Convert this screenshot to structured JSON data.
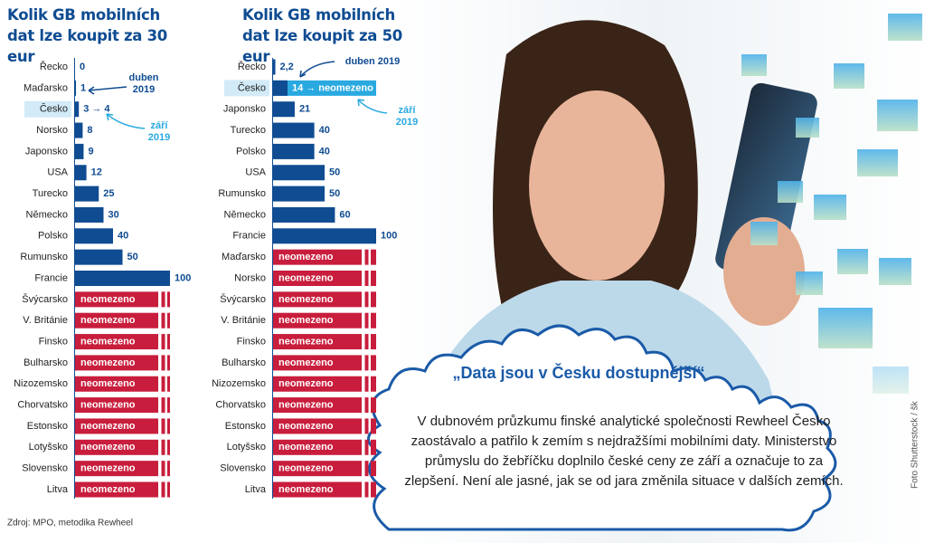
{
  "chart_data": [
    {
      "type": "bar",
      "orientation": "horizontal",
      "title": "Kolik GB mobilních dat lze koupit za 30 eur",
      "categories": [
        "Řecko",
        "Maďarsko",
        "Česko",
        "Norsko",
        "Japonsko",
        "USA",
        "Turecko",
        "Německo",
        "Polsko",
        "Rumunsko",
        "Francie",
        "Švýcarsko",
        "V. Británie",
        "Finsko",
        "Bulharsko",
        "Nizozemsko",
        "Chorvatsko",
        "Estonsko",
        "Lotyšsko",
        "Slovensko",
        "Litva"
      ],
      "values": [
        0,
        1,
        4,
        8,
        9,
        12,
        25,
        30,
        40,
        50,
        100,
        null,
        null,
        null,
        null,
        null,
        null,
        null,
        null,
        null,
        null
      ],
      "value_labels": [
        "0",
        "1",
        "3 → 4",
        "8",
        "9",
        "12",
        "25",
        "30",
        "40",
        "50",
        "100",
        "neomezeno",
        "neomezeno",
        "neomezeno",
        "neomezeno",
        "neomezeno",
        "neomezeno",
        "neomezeno",
        "neomezeno",
        "neomezeno",
        "neomezeno"
      ],
      "color": "#0f4c92",
      "unlimited_color": "#c81d3c",
      "xlim": [
        0,
        100
      ],
      "annotations": [
        "duben 2019",
        "září 2019"
      ]
    },
    {
      "type": "bar",
      "orientation": "horizontal",
      "title": "Kolik GB mobilních dat lze koupit za 50 eur",
      "categories": [
        "Řecko",
        "Česko",
        "Japonsko",
        "Turecko",
        "Polsko",
        "USA",
        "Rumunsko",
        "Německo",
        "Francie",
        "Maďarsko",
        "Norsko",
        "Švýcarsko",
        "V. Británie",
        "Finsko",
        "Bulharsko",
        "Nizozemsko",
        "Chorvatsko",
        "Estonsko",
        "Lotyšsko",
        "Slovensko",
        "Litva"
      ],
      "values": [
        2.2,
        14,
        21,
        40,
        40,
        50,
        50,
        60,
        100,
        null,
        null,
        null,
        null,
        null,
        null,
        null,
        null,
        null,
        null,
        null,
        null
      ],
      "value_labels": [
        "2,2",
        "14 → neomezeno",
        "21",
        "40",
        "40",
        "50",
        "50",
        "60",
        "100",
        "neomezeno",
        "neomezeno",
        "neomezeno",
        "neomezeno",
        "neomezeno",
        "neomezeno",
        "neomezeno",
        "neomezeno",
        "neomezeno",
        "neomezeno",
        "neomezeno",
        "neomezeno"
      ],
      "color": "#0f4c92",
      "unlimited_color": "#c81d3c",
      "xlim": [
        0,
        100
      ],
      "annotations": [
        "duben 2019",
        "září 2019"
      ]
    }
  ],
  "source": "Zdroj: MPO, metodika Rewheel",
  "quote": {
    "title": "„Data jsou v Česku dostupnější“",
    "text": "V dubnovém průzkumu finské analytické společnosti Rewheel Česko zaostávalo a patřilo k zemím s nejdražšími mobilními daty. Ministerstvo průmyslu do žebříčku doplnilo české ceny ze září a označuje to za zlepšení. Není ale jasné, jak se od jara změnila situace v dalších zemích."
  },
  "photo_credit": "Foto Shutterstock / šk"
}
